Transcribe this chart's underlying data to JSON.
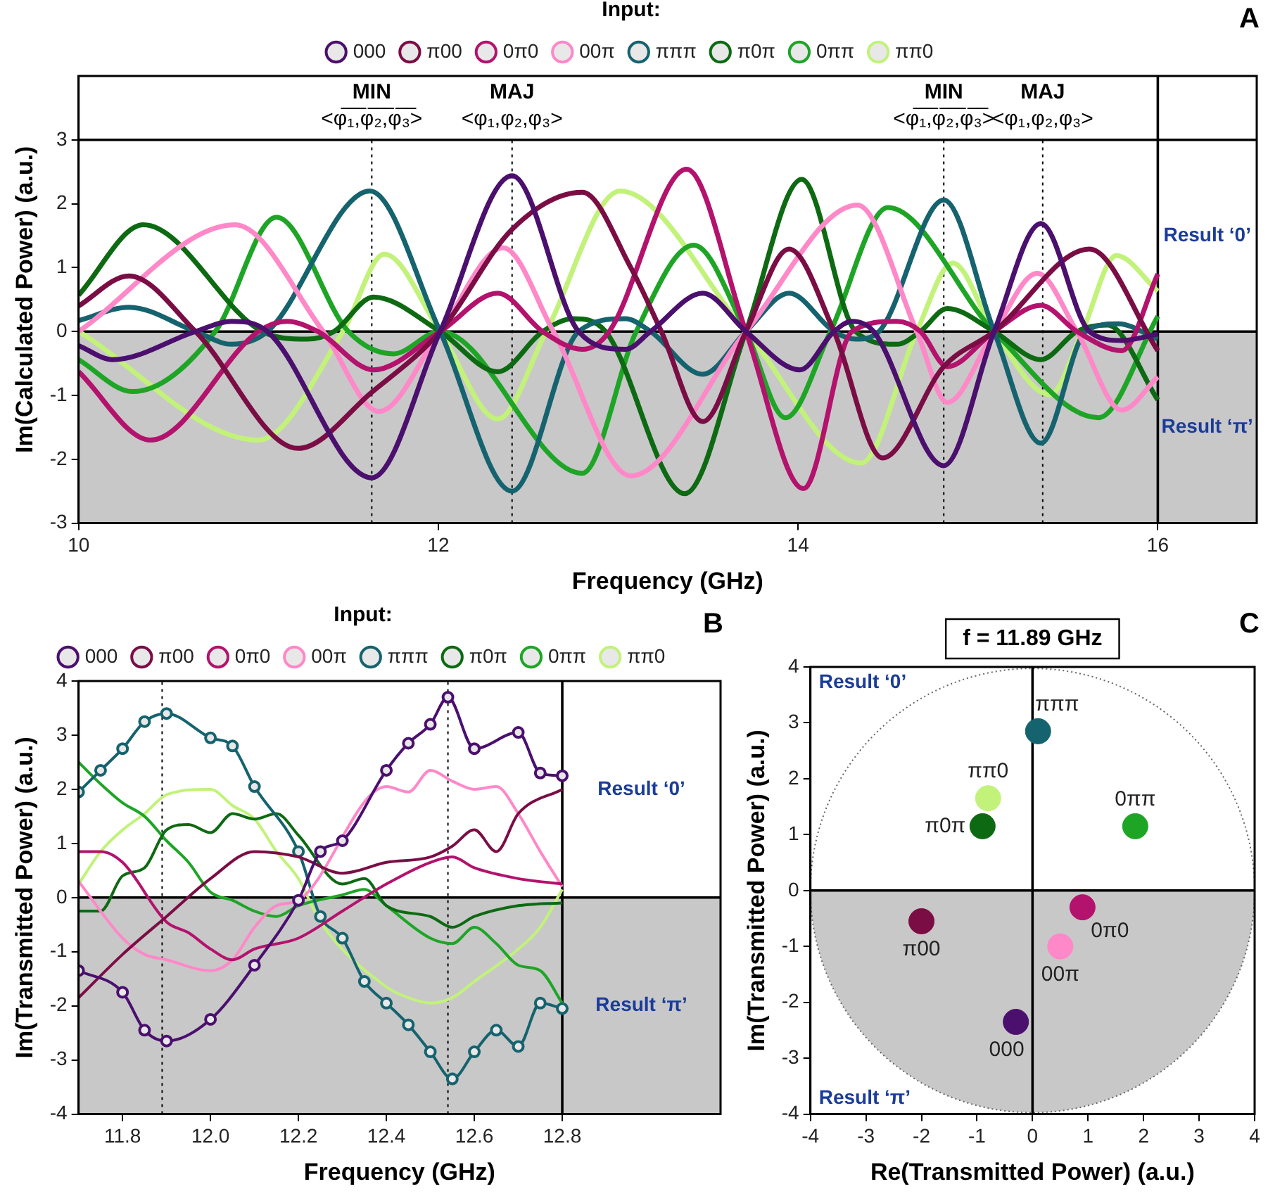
{
  "chart_data": [
    {
      "type": "line",
      "xlabel": "Frequency (GHz)",
      "ylabel": "Im(Calculated Power) (a.u.)",
      "legend": "top",
      "legend_title": "Input:",
      "xlim": [
        10,
        16.55
      ],
      "xticks": [
        10,
        12,
        14,
        16
      ],
      "ylim": [
        -3,
        4
      ],
      "yticks": [
        -3,
        -2,
        -1,
        0,
        1,
        2,
        3
      ],
      "bands": [
        {
          "axis": "y",
          "from": -3,
          "to": 0,
          "label": "Result ‘π’",
          "color": "#c8c8c8"
        }
      ],
      "ref_lines": [
        {
          "axis": "y",
          "value": 0,
          "color": "#000000",
          "line_style": "solid"
        },
        {
          "axis": "y",
          "value": 3,
          "color": "#000000",
          "line_style": "solid"
        },
        {
          "axis": "x",
          "value": 16,
          "color": "#000000",
          "line_style": "solid"
        },
        {
          "axis": "x",
          "value": 11.63,
          "label": "MIN\n<φ̅₁̅,̅φ̅₂̅,̅φ̅₃̅>",
          "color": "#000000",
          "line_style": "dotted"
        },
        {
          "axis": "x",
          "value": 12.41,
          "label": "MAJ\n<φ₁,φ₂,φ₃>",
          "color": "#000000",
          "line_style": "dotted"
        },
        {
          "axis": "x",
          "value": 14.81,
          "label": "MIN\n<φ̅₁̅,̅φ̅₂̅,̅φ̅₃̅>",
          "color": "#000000",
          "line_style": "dotted"
        },
        {
          "axis": "x",
          "value": 15.36,
          "label": "MAJ\n<φ₁,φ₂,φ₃>",
          "color": "#000000",
          "line_style": "dotted"
        }
      ],
      "annotations": [
        "A",
        "Result ‘0’"
      ],
      "series": [
        {
          "name": "000",
          "color": "#4b0f6e",
          "x": [
            10,
            10.19,
            10.65,
            10.85,
            11.05,
            11.63,
            12.01,
            12.41,
            12.78,
            13.04,
            13.18,
            13.47,
            13.71,
            14.01,
            14.2,
            14.3,
            14.42,
            14.81,
            15.09,
            15.35,
            15.62,
            15.8,
            16
          ],
          "values": [
            -0.22,
            -0.44,
            0,
            0.16,
            0,
            -2.29,
            0,
            2.44,
            0,
            -0.28,
            0,
            0.6,
            0,
            -0.6,
            0,
            0.16,
            0,
            -2.1,
            0,
            1.69,
            0,
            -0.14,
            -0.04
          ]
        },
        {
          "name": "π00",
          "color": "#7b0d45",
          "x": [
            10,
            10.28,
            10.65,
            11.22,
            11.63,
            12.01,
            12.41,
            12.8,
            13.07,
            13.24,
            13.47,
            13.71,
            13.95,
            14.2,
            14.47,
            14.81,
            15.09,
            15.62,
            16
          ],
          "values": [
            0.4,
            0.87,
            0,
            -1.83,
            -0.95,
            0,
            1.6,
            2.18,
            1.0,
            0,
            -1.41,
            0,
            1.29,
            0,
            -1.98,
            -0.55,
            0,
            1.29,
            -0.3
          ]
        },
        {
          "name": "0π0",
          "color": "#b3126d",
          "x": [
            10,
            10.4,
            11.0,
            11.16,
            11.33,
            11.64,
            12.01,
            12.33,
            12.58,
            12.8,
            12.95,
            13.38,
            13.71,
            14.03,
            14.3,
            14.55,
            14.68,
            14.83,
            15.09,
            15.35,
            15.55,
            15.8,
            16
          ],
          "values": [
            -0.63,
            -1.7,
            0,
            0.16,
            0,
            -0.6,
            0,
            0.6,
            0,
            -0.28,
            0,
            2.54,
            0,
            -2.46,
            0,
            0.16,
            0,
            -0.55,
            0,
            0.41,
            0,
            -0.3,
            0.9
          ]
        },
        {
          "name": "00π",
          "color": "#ff88c8",
          "x": [
            10,
            10.87,
            11.36,
            11.67,
            12.01,
            12.36,
            12.64,
            13.07,
            13.71,
            14.33,
            14.66,
            14.83,
            15.09,
            15.33,
            15.55,
            15.8,
            16
          ],
          "values": [
            0,
            1.67,
            0,
            -1.25,
            0,
            1.31,
            0,
            -2.26,
            0,
            1.98,
            0,
            -1.11,
            0,
            0.91,
            0,
            -1.23,
            -0.71
          ]
        },
        {
          "name": "πππ",
          "color": "#15636e",
          "x": [
            10,
            10.28,
            10.65,
            10.85,
            11.05,
            11.62,
            12.01,
            12.41,
            12.78,
            13.04,
            13.18,
            13.47,
            13.71,
            13.95,
            14.2,
            14.32,
            14.45,
            14.81,
            15.09,
            15.35,
            15.6,
            15.78,
            16
          ],
          "values": [
            0.17,
            0.38,
            0,
            -0.2,
            0,
            2.2,
            0,
            -2.5,
            0,
            0.2,
            0,
            -0.67,
            0,
            0.6,
            0,
            -0.12,
            0,
            2.06,
            0,
            -1.75,
            0,
            0.12,
            -0.12
          ]
        },
        {
          "name": "π0π",
          "color": "#0d6a12",
          "x": [
            10,
            10.36,
            11.02,
            11.27,
            11.42,
            11.64,
            12.01,
            12.33,
            12.58,
            12.75,
            12.93,
            13.37,
            13.71,
            14.02,
            14.32,
            14.55,
            14.68,
            14.83,
            15.09,
            15.35,
            15.55,
            15.72,
            16
          ],
          "values": [
            0.57,
            1.67,
            0,
            -0.12,
            0,
            0.54,
            0,
            -0.63,
            0,
            0.2,
            0,
            -2.54,
            0,
            2.38,
            0,
            -0.2,
            0,
            0.36,
            0,
            -0.44,
            0,
            0.1,
            -1.07
          ]
        },
        {
          "name": "0ππ",
          "color": "#1ea526",
          "x": [
            10,
            10.3,
            10.76,
            11.1,
            11.5,
            11.75,
            12.01,
            12.8,
            13.1,
            13.42,
            13.71,
            13.93,
            14.18,
            14.5,
            15.09,
            15.67,
            16
          ],
          "values": [
            -0.44,
            -0.94,
            0,
            1.79,
            0,
            -0.35,
            0,
            -2.22,
            0,
            1.35,
            0,
            -1.35,
            0,
            1.94,
            0,
            -1.35,
            0.24
          ]
        },
        {
          "name": "ππ0",
          "color": "#c2f27a",
          "x": [
            10,
            11.0,
            11.47,
            11.7,
            12.01,
            12.33,
            12.6,
            13.01,
            13.71,
            14.35,
            14.66,
            14.86,
            15.09,
            15.4,
            15.58,
            15.77,
            16
          ],
          "values": [
            0,
            -1.7,
            0,
            1.21,
            0,
            -1.37,
            0,
            2.2,
            0,
            -2.06,
            0,
            1.07,
            0,
            -0.99,
            0,
            1.19,
            0.63
          ]
        }
      ]
    },
    {
      "type": "line",
      "xlabel": "Frequency (GHz)",
      "ylabel": "Im(Transmitted Power) (a.u.)",
      "legend": "top",
      "legend_title": "Input:",
      "xlim": [
        11.7,
        13.16
      ],
      "xticks": [
        11.8,
        {
          "value": 12,
          "label": "12.0"
        },
        12.2,
        12.4,
        12.6,
        12.8
      ],
      "ylim": [
        -4,
        4
      ],
      "yticks": [
        -4,
        -3,
        -2,
        -1,
        0,
        1,
        2,
        3,
        4
      ],
      "bands": [
        {
          "axis": "y",
          "from": -4,
          "to": 0,
          "label": "Result ‘π’",
          "color": "#c8c8c8"
        }
      ],
      "ref_lines": [
        {
          "axis": "y",
          "value": 0,
          "color": "#000000",
          "line_style": "solid"
        },
        {
          "axis": "x",
          "value": 12.8,
          "color": "#000000",
          "line_style": "solid"
        },
        {
          "axis": "x",
          "value": 11.89,
          "color": "#000000",
          "line_style": "dotted"
        },
        {
          "axis": "x",
          "value": 12.54,
          "color": "#000000",
          "line_style": "dotted"
        }
      ],
      "annotations": [
        "B",
        "Result ‘0’"
      ],
      "series": [
        {
          "name": "000",
          "color": "#4b0f6e",
          "marker": "circle",
          "x": [
            11.7,
            11.8,
            11.85,
            11.9,
            12.0,
            12.1,
            12.2,
            12.25,
            12.3,
            12.4,
            12.45,
            12.5,
            12.54,
            12.6,
            12.7,
            12.75,
            12.8
          ],
          "values": [
            -1.35,
            -1.75,
            -2.45,
            -2.65,
            -2.25,
            -1.25,
            -0.05,
            0.85,
            1.05,
            2.35,
            2.85,
            3.2,
            3.7,
            2.75,
            3.05,
            2.3,
            2.25
          ]
        },
        {
          "name": "π00",
          "color": "#7b0d45",
          "x": [
            11.7,
            11.8,
            11.9,
            12.0,
            12.1,
            12.2,
            12.3,
            12.4,
            12.5,
            12.55,
            12.6,
            12.65,
            12.7,
            12.8
          ],
          "values": [
            -1.85,
            -1.05,
            -0.35,
            0.35,
            0.85,
            0.75,
            0.45,
            0.65,
            0.75,
            0.95,
            1.25,
            0.85,
            1.55,
            2.0
          ]
        },
        {
          "name": "0π0",
          "color": "#b3126d",
          "x": [
            11.7,
            11.75,
            11.8,
            11.9,
            11.95,
            12.0,
            12.05,
            12.1,
            12.2,
            12.3,
            12.4,
            12.5,
            12.55,
            12.6,
            12.7,
            12.8
          ],
          "values": [
            0.85,
            0.85,
            0.65,
            -0.45,
            -0.65,
            -0.95,
            -1.15,
            -0.95,
            -0.75,
            -0.25,
            0.25,
            0.65,
            0.75,
            0.55,
            0.35,
            0.25
          ]
        },
        {
          "name": "00π",
          "color": "#ff88c8",
          "x": [
            11.7,
            11.8,
            11.85,
            11.9,
            12.0,
            12.05,
            12.1,
            12.15,
            12.2,
            12.4,
            12.45,
            12.5,
            12.55,
            12.6,
            12.65,
            12.7,
            12.75,
            12.8
          ],
          "values": [
            0.3,
            -0.75,
            -1.05,
            -1.15,
            -1.35,
            -1.15,
            -0.55,
            -0.15,
            -0.05,
            2.05,
            1.95,
            2.35,
            2.15,
            2.0,
            2.05,
            1.55,
            0.85,
            0.2
          ]
        },
        {
          "name": "πππ",
          "color": "#15636e",
          "marker": "circle",
          "x": [
            11.7,
            11.75,
            11.8,
            11.85,
            11.9,
            12.0,
            12.05,
            12.1,
            12.2,
            12.25,
            12.3,
            12.35,
            12.4,
            12.45,
            12.5,
            12.55,
            12.6,
            12.65,
            12.7,
            12.75,
            12.8
          ],
          "values": [
            1.95,
            2.35,
            2.75,
            3.25,
            3.4,
            2.95,
            2.8,
            2.05,
            0.85,
            -0.35,
            -0.75,
            -1.55,
            -1.95,
            -2.35,
            -2.85,
            -3.35,
            -2.85,
            -2.45,
            -2.75,
            -1.95,
            -2.05
          ]
        },
        {
          "name": "π0π",
          "color": "#0d6a12",
          "x": [
            11.7,
            11.75,
            11.8,
            11.85,
            11.9,
            11.95,
            12.0,
            12.05,
            12.1,
            12.15,
            12.2,
            12.3,
            12.35,
            12.4,
            12.5,
            12.55,
            12.6,
            12.7,
            12.8
          ],
          "values": [
            -0.25,
            -0.25,
            0.4,
            0.55,
            1.25,
            1.35,
            1.2,
            1.55,
            1.45,
            1.55,
            1.15,
            0.25,
            0.35,
            -0.15,
            -0.35,
            -0.55,
            -0.35,
            -0.15,
            -0.1
          ]
        },
        {
          "name": "0ππ",
          "color": "#1ea526",
          "x": [
            11.7,
            11.75,
            11.8,
            11.85,
            11.9,
            11.95,
            12.0,
            12.05,
            12.1,
            12.15,
            12.2,
            12.3,
            12.35,
            12.4,
            12.5,
            12.55,
            12.6,
            12.65,
            12.7,
            12.75,
            12.8
          ],
          "values": [
            2.5,
            2.1,
            1.75,
            1.5,
            1.05,
            0.65,
            0.1,
            -0.05,
            -0.25,
            -0.35,
            -0.15,
            0.05,
            0.15,
            -0.15,
            -0.75,
            -0.85,
            -0.55,
            -0.85,
            -1.25,
            -1.35,
            -1.95
          ]
        },
        {
          "name": "ππ0",
          "color": "#c2f27a",
          "x": [
            11.7,
            11.75,
            11.8,
            11.85,
            11.9,
            12.0,
            12.05,
            12.1,
            12.15,
            12.2,
            12.25,
            12.4,
            12.45,
            12.5,
            12.55,
            12.6,
            12.7,
            12.75,
            12.8
          ],
          "values": [
            0.25,
            0.85,
            1.25,
            1.55,
            1.9,
            2.0,
            1.7,
            1.45,
            0.85,
            0.35,
            -0.45,
            -1.65,
            -1.85,
            -1.95,
            -1.85,
            -1.55,
            -0.95,
            -0.55,
            0.15
          ]
        }
      ]
    },
    {
      "type": "scatter",
      "title": "f = 11.89 GHz",
      "xlabel": "Re(Transmitted Power) (a.u.)",
      "ylabel": "Im(Transmitted Power) (a.u.)",
      "marker": "circle",
      "xlim": [
        -4,
        4
      ],
      "xticks": [
        -4,
        -3,
        -2,
        -1,
        0,
        1,
        2,
        3,
        4
      ],
      "ylim": [
        -4,
        4
      ],
      "yticks": [
        -4,
        -3,
        -2,
        -1,
        0,
        1,
        2,
        3,
        4
      ],
      "bands": [
        {
          "axis": "y",
          "from": -4,
          "to": 0,
          "label": "Result ‘π’",
          "color": "#c8c8c8"
        }
      ],
      "ref_lines": [
        {
          "axis": "x",
          "value": 0,
          "color": "#000000",
          "line_style": "solid"
        },
        {
          "axis": "y",
          "value": 0,
          "color": "#000000",
          "line_style": "solid"
        }
      ],
      "annotations": [
        "C",
        "Result ‘0’"
      ],
      "series": [
        {
          "name": "000",
          "color": "#4b0f6e",
          "x": [
            -0.3
          ],
          "values": [
            -2.35
          ]
        },
        {
          "name": "π00",
          "color": "#7b0d45",
          "x": [
            -2.0
          ],
          "values": [
            -0.55
          ]
        },
        {
          "name": "0π0",
          "color": "#b3126d",
          "x": [
            0.9
          ],
          "values": [
            -0.3
          ]
        },
        {
          "name": "00π",
          "color": "#ff88c8",
          "x": [
            0.5
          ],
          "values": [
            -1.0
          ]
        },
        {
          "name": "πππ",
          "color": "#15636e",
          "x": [
            0.1
          ],
          "values": [
            2.85
          ]
        },
        {
          "name": "π0π",
          "color": "#0d6a12",
          "x": [
            -0.9
          ],
          "values": [
            1.15
          ]
        },
        {
          "name": "0ππ",
          "color": "#1ea526",
          "x": [
            1.85
          ],
          "values": [
            1.15
          ]
        },
        {
          "name": "ππ0",
          "color": "#c2f27a",
          "x": [
            -0.8
          ],
          "values": [
            1.65
          ]
        }
      ]
    }
  ]
}
